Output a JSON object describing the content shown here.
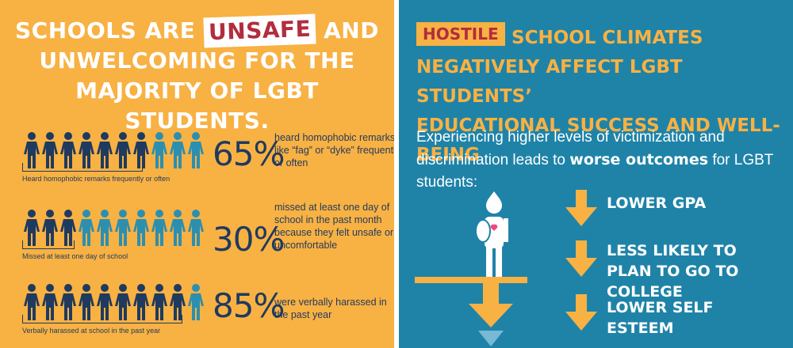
{
  "left": {
    "headline_pre": "SCHOOLS ARE",
    "headline_tag": "UNSAFE",
    "headline_post_1": "AND",
    "headline_line2": "UNWELCOMING FOR THE",
    "headline_line3": "MAJORITY OF LGBT STUDENTS.",
    "stats": [
      {
        "percent": "65%",
        "fraction": 0.65,
        "description": "heard homophobic remarks like “fag” or “dyke” frequently or often",
        "caption": "Heard homophobic remarks frequently or often"
      },
      {
        "percent": "30%",
        "fraction": 0.3,
        "description": "missed at least one day of school in the past month because they felt unsafe or uncomfortable",
        "caption": "Missed at least one day of school"
      },
      {
        "percent": "85%",
        "fraction": 0.85,
        "description": "were verbally harassed in the past year",
        "caption": "Verbally harassed at school in the past year"
      }
    ]
  },
  "right": {
    "tag": "HOSTILE",
    "title_line1": "SCHOOL CLIMATES",
    "title_line2": "NEGATIVELY AFFECT LGBT STUDENTS’",
    "title_line3": "EDUCATIONAL SUCCESS AND WELL-BEING",
    "body_pre": "Experiencing higher levels of victimization and discrimination leads to",
    "body_bold": "worse outcomes",
    "body_post": "for LGBT students:",
    "outcomes": [
      "LOWER GPA",
      "LESS LIKELY TO PLAN TO GO TO COLLEGE",
      "LOWER SELF ESTEEM"
    ]
  },
  "colors": {
    "orange": "#F8B143",
    "navy": "#1F3A5F",
    "teal_figure": "#2C8FB0",
    "blue_bg": "#1F83A8",
    "red": "#B22D3E"
  }
}
